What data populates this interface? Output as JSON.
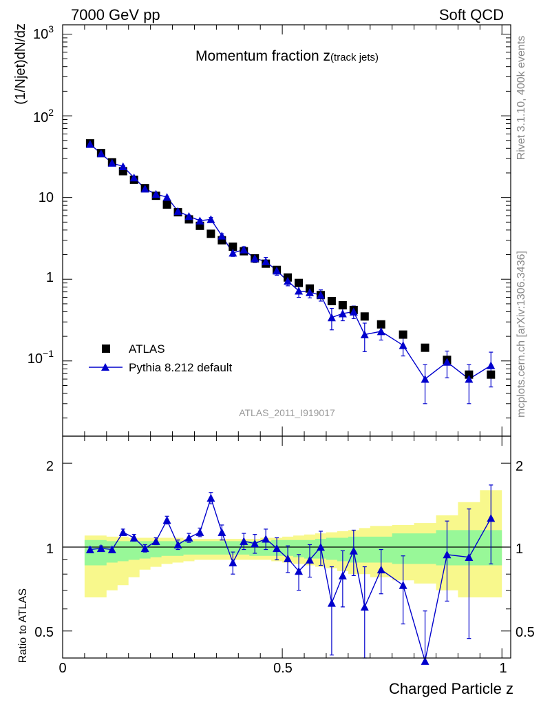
{
  "header": {
    "left": "7000 GeV pp",
    "right": "Soft QCD"
  },
  "side_labels": {
    "rivet": "Rivet 3.1.10,  400k events",
    "site": "mcplots.cern.ch [arXiv:1306.3436]"
  },
  "main_plot": {
    "title_main": "Momentum fraction z",
    "title_sub": "(track jets)",
    "ylabel": "(1/Njet)dN/dz",
    "analysis_id": "ATLAS_2011_I919017",
    "ytick_labels": [
      "10",
      "1"
    ],
    "ytick_pow_labels": [
      {
        "base": "10",
        "exp": "3"
      },
      {
        "base": "10",
        "exp": "2"
      },
      {
        "base": "10",
        "exp": "−1"
      }
    ]
  },
  "ratio_plot": {
    "ylabel": "Ratio to ATLAS",
    "ytick_labels": [
      "2",
      "1",
      "0.5"
    ]
  },
  "x_axis": {
    "label": "Charged Particle z",
    "tick_labels": [
      "0",
      "0.5",
      "1"
    ]
  },
  "legend": {
    "data_label": "ATLAS",
    "mc_label": "Pythia 8.212 default"
  },
  "colors": {
    "data": "#000000",
    "mc": "#0000cc",
    "band_inner": "#98f898",
    "band_outer": "#f8f88c"
  },
  "chart_data": [
    {
      "type": "scatter",
      "title": "Momentum fraction z(track jets)",
      "xlabel": "Charged Particle z",
      "ylabel": "(1/Njet)dN/dz",
      "yscale": "log",
      "xlim": [
        0,
        1.02
      ],
      "ylim": [
        0.012,
        1300
      ],
      "series": [
        {
          "name": "ATLAS",
          "marker": "square",
          "x": [
            0.0625,
            0.0875,
            0.1125,
            0.1375,
            0.1625,
            0.1875,
            0.2125,
            0.2375,
            0.2625,
            0.2875,
            0.3125,
            0.3375,
            0.3625,
            0.3875,
            0.4125,
            0.4375,
            0.4625,
            0.4875,
            0.5125,
            0.5375,
            0.5625,
            0.5875,
            0.6125,
            0.6375,
            0.6625,
            0.6875,
            0.725,
            0.775,
            0.825,
            0.875,
            0.925,
            0.975
          ],
          "y": [
            46,
            35,
            27,
            21,
            16.5,
            13,
            10.5,
            8.2,
            6.6,
            5.4,
            4.5,
            3.6,
            3.0,
            2.5,
            2.2,
            1.8,
            1.55,
            1.3,
            1.05,
            0.9,
            0.77,
            0.64,
            0.54,
            0.48,
            0.42,
            0.35,
            0.28,
            0.21,
            0.145,
            0.103,
            0.068,
            0.068
          ]
        },
        {
          "name": "Pythia 8.212 default",
          "marker": "triangle",
          "x": [
            0.0625,
            0.0875,
            0.1125,
            0.1375,
            0.1625,
            0.1875,
            0.2125,
            0.2375,
            0.2625,
            0.2875,
            0.3125,
            0.3375,
            0.3625,
            0.3875,
            0.4125,
            0.4375,
            0.4625,
            0.4875,
            0.5125,
            0.5375,
            0.5625,
            0.5875,
            0.6125,
            0.6375,
            0.6625,
            0.6875,
            0.725,
            0.775,
            0.825,
            0.875,
            0.925,
            0.975
          ],
          "y": [
            45,
            34.5,
            26.5,
            24,
            17.5,
            12.8,
            11,
            10.1,
            6.8,
            5.9,
            5.2,
            5.4,
            3.4,
            2.1,
            2.3,
            1.8,
            1.65,
            1.27,
            0.95,
            0.72,
            0.69,
            0.64,
            0.34,
            0.38,
            0.4,
            0.21,
            0.23,
            0.155,
            0.06,
            0.097,
            0.06,
            0.088
          ],
          "yerr": [
            0.5,
            0.4,
            0.4,
            0.5,
            0.4,
            0.4,
            0.3,
            0.3,
            0.3,
            0.2,
            0.2,
            0.3,
            0.2,
            0.2,
            0.2,
            0.2,
            0.2,
            0.15,
            0.12,
            0.12,
            0.1,
            0.1,
            0.1,
            0.07,
            0.07,
            0.08,
            0.05,
            0.04,
            0.03,
            0.035,
            0.03,
            0.04
          ]
        }
      ]
    },
    {
      "type": "scatter",
      "ylabel": "Ratio to ATLAS",
      "xlabel": "Charged Particle z",
      "yscale": "log",
      "xlim": [
        0,
        1.02
      ],
      "ylim": [
        0.4,
        2.5
      ],
      "reference_line": 1,
      "bands": {
        "x_edges": [
          0.05,
          0.075,
          0.1,
          0.125,
          0.15,
          0.175,
          0.2,
          0.225,
          0.25,
          0.275,
          0.3,
          0.325,
          0.35,
          0.375,
          0.4,
          0.425,
          0.45,
          0.475,
          0.5,
          0.525,
          0.55,
          0.575,
          0.6,
          0.625,
          0.65,
          0.675,
          0.7,
          0.75,
          0.8,
          0.85,
          0.9,
          0.95,
          1.0
        ],
        "inner_lo": [
          0.86,
          0.86,
          0.88,
          0.89,
          0.9,
          0.91,
          0.92,
          0.93,
          0.93,
          0.94,
          0.94,
          0.94,
          0.94,
          0.94,
          0.94,
          0.93,
          0.93,
          0.93,
          0.93,
          0.92,
          0.91,
          0.91,
          0.9,
          0.89,
          0.88,
          0.88,
          0.88,
          0.87,
          0.87,
          0.86,
          0.86,
          0.86
        ],
        "inner_hi": [
          1.06,
          1.06,
          1.05,
          1.05,
          1.05,
          1.05,
          1.05,
          1.05,
          1.05,
          1.05,
          1.05,
          1.05,
          1.05,
          1.05,
          1.05,
          1.05,
          1.05,
          1.06,
          1.06,
          1.06,
          1.06,
          1.07,
          1.08,
          1.08,
          1.09,
          1.09,
          1.09,
          1.12,
          1.12,
          1.15,
          1.15,
          1.15
        ],
        "outer_lo": [
          0.66,
          0.66,
          0.7,
          0.73,
          0.78,
          0.83,
          0.85,
          0.87,
          0.88,
          0.89,
          0.9,
          0.9,
          0.9,
          0.9,
          0.9,
          0.9,
          0.9,
          0.89,
          0.88,
          0.87,
          0.86,
          0.85,
          0.84,
          0.82,
          0.8,
          0.8,
          0.78,
          0.76,
          0.74,
          0.7,
          0.66,
          0.66
        ],
        "outer_hi": [
          1.1,
          1.1,
          1.09,
          1.09,
          1.08,
          1.08,
          1.08,
          1.08,
          1.08,
          1.07,
          1.07,
          1.07,
          1.07,
          1.07,
          1.07,
          1.07,
          1.08,
          1.08,
          1.09,
          1.1,
          1.11,
          1.12,
          1.13,
          1.14,
          1.15,
          1.17,
          1.19,
          1.2,
          1.22,
          1.3,
          1.45,
          1.6
        ]
      },
      "series": [
        {
          "name": "Pythia 8.212 default / ATLAS",
          "marker": "triangle",
          "x": [
            0.0625,
            0.0875,
            0.1125,
            0.1375,
            0.1625,
            0.1875,
            0.2125,
            0.2375,
            0.2625,
            0.2875,
            0.3125,
            0.3375,
            0.3625,
            0.3875,
            0.4125,
            0.4375,
            0.4625,
            0.4875,
            0.5125,
            0.5375,
            0.5625,
            0.5875,
            0.6125,
            0.6375,
            0.6625,
            0.6875,
            0.725,
            0.775,
            0.825,
            0.875,
            0.925,
            0.975
          ],
          "y": [
            0.98,
            0.99,
            0.98,
            1.13,
            1.08,
            0.99,
            1.05,
            1.25,
            1.02,
            1.08,
            1.13,
            1.5,
            1.13,
            0.88,
            1.05,
            1.03,
            1.07,
            0.99,
            0.91,
            0.82,
            0.9,
            1.0,
            0.63,
            0.79,
            0.97,
            0.61,
            0.83,
            0.73,
            0.39,
            0.94,
            0.92,
            1.27
          ],
          "yerr": [
            0.02,
            0.02,
            0.02,
            0.03,
            0.03,
            0.03,
            0.03,
            0.04,
            0.04,
            0.04,
            0.04,
            0.07,
            0.07,
            0.08,
            0.07,
            0.08,
            0.09,
            0.09,
            0.1,
            0.12,
            0.12,
            0.14,
            0.22,
            0.18,
            0.18,
            0.24,
            0.15,
            0.2,
            0.2,
            0.3,
            0.45,
            0.4
          ]
        }
      ]
    }
  ]
}
